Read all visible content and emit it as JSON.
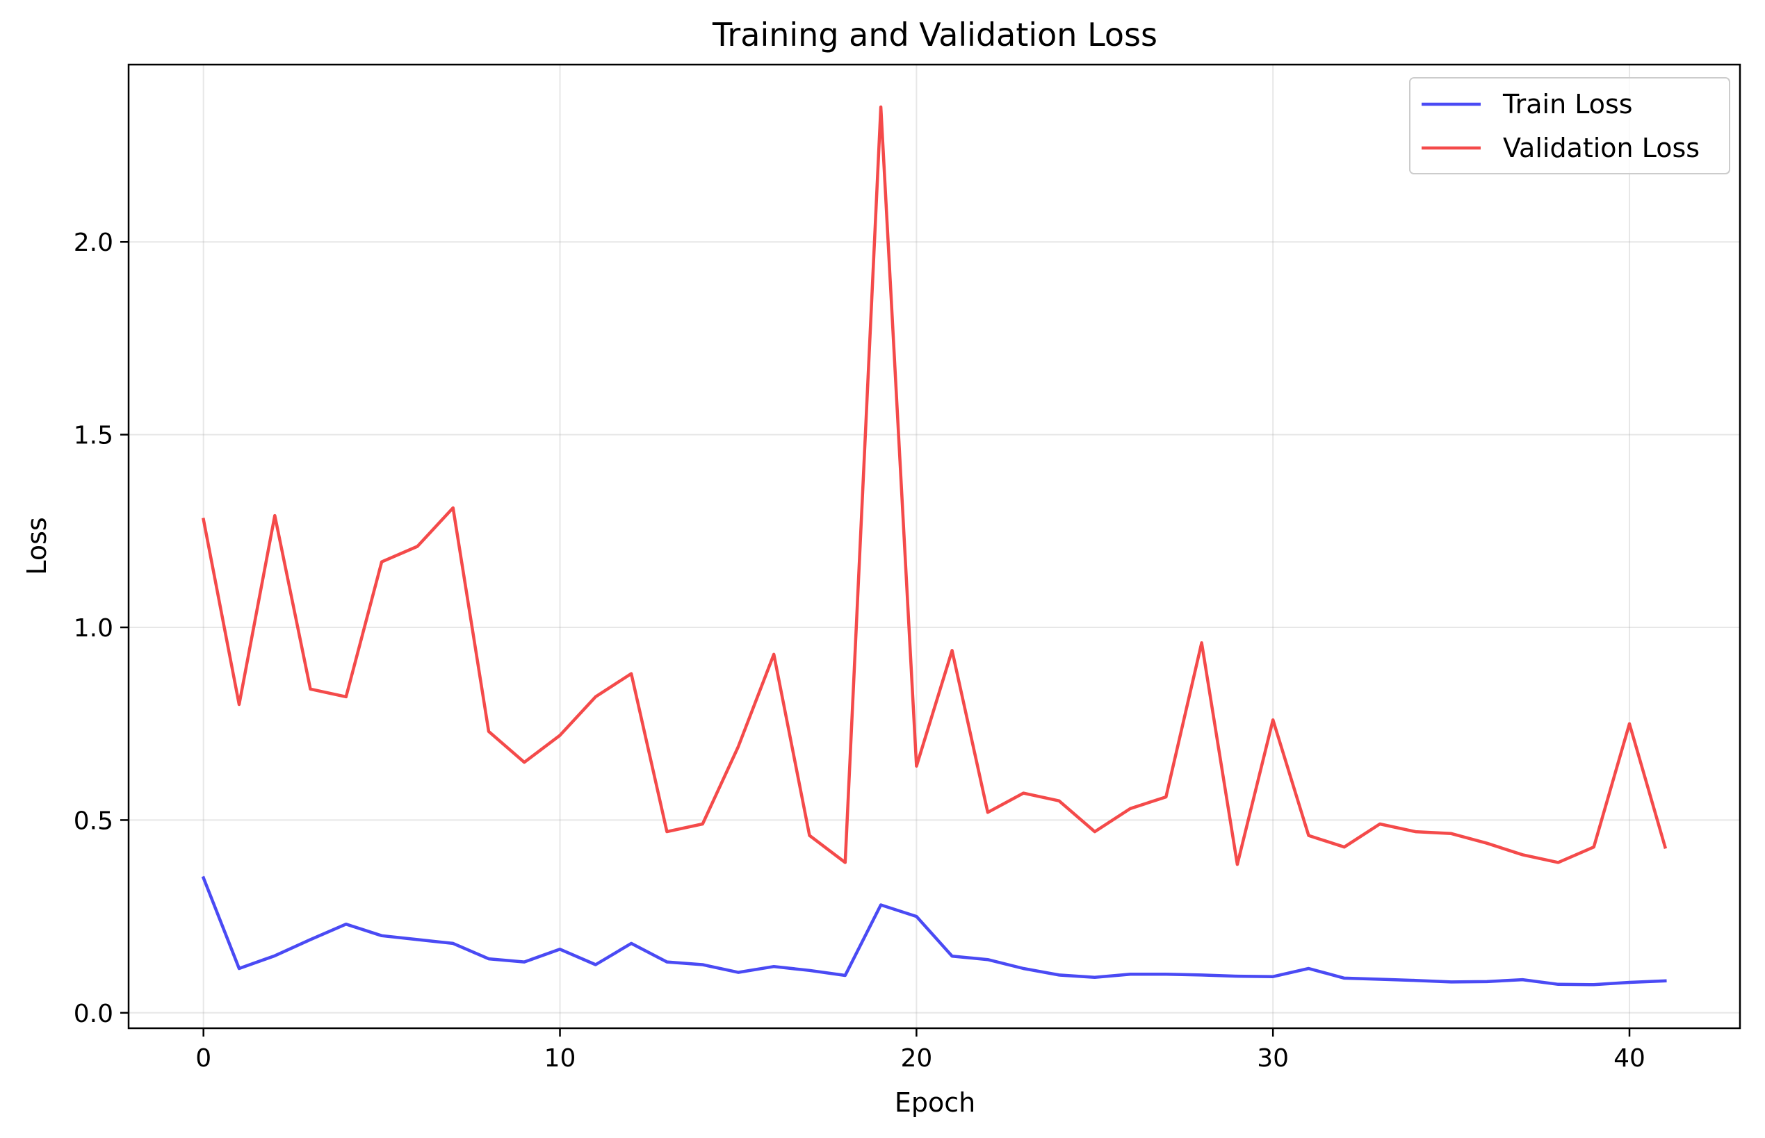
{
  "chart_data": {
    "type": "line",
    "title": "Training and Validation Loss",
    "xlabel": "Epoch",
    "ylabel": "Loss",
    "xlim": [
      -2.1,
      43.1
    ],
    "ylim": [
      -0.04,
      2.46
    ],
    "xticks": [
      0,
      10,
      20,
      30,
      40
    ],
    "yticks": [
      0.0,
      0.5,
      1.0,
      1.5,
      2.0
    ],
    "xtick_labels": [
      "0",
      "10",
      "20",
      "30",
      "40"
    ],
    "ytick_labels": [
      "0.0",
      "0.5",
      "1.0",
      "1.5",
      "2.0"
    ],
    "grid": true,
    "legend_position": "top-right",
    "x": [
      0,
      1,
      2,
      3,
      4,
      5,
      6,
      7,
      8,
      9,
      10,
      11,
      12,
      13,
      14,
      15,
      16,
      17,
      18,
      19,
      20,
      21,
      22,
      23,
      24,
      25,
      26,
      27,
      28,
      29,
      30,
      31,
      32,
      33,
      34,
      35,
      36,
      37,
      38,
      39,
      40,
      41
    ],
    "series": [
      {
        "name": "Train Loss",
        "color": "#4a4af4",
        "values": [
          0.35,
          0.115,
          0.148,
          0.19,
          0.23,
          0.2,
          0.19,
          0.18,
          0.14,
          0.132,
          0.165,
          0.125,
          0.18,
          0.132,
          0.125,
          0.105,
          0.12,
          0.11,
          0.097,
          0.28,
          0.25,
          0.147,
          0.138,
          0.115,
          0.098,
          0.092,
          0.1,
          0.1,
          0.098,
          0.095,
          0.094,
          0.115,
          0.09,
          0.087,
          0.084,
          0.08,
          0.081,
          0.086,
          0.074,
          0.073,
          0.079,
          0.083
        ]
      },
      {
        "name": "Validation Loss",
        "color": "#f44a4a",
        "values": [
          1.28,
          0.8,
          1.29,
          0.84,
          0.82,
          1.17,
          1.21,
          1.31,
          0.73,
          0.65,
          0.72,
          0.82,
          0.88,
          0.47,
          0.49,
          0.69,
          0.93,
          0.46,
          0.39,
          2.35,
          0.64,
          0.94,
          0.52,
          0.57,
          0.55,
          0.47,
          0.53,
          0.56,
          0.96,
          0.385,
          0.76,
          0.46,
          0.43,
          0.49,
          0.47,
          0.465,
          0.44,
          0.41,
          0.39,
          0.43,
          0.75,
          0.43
        ]
      }
    ]
  }
}
